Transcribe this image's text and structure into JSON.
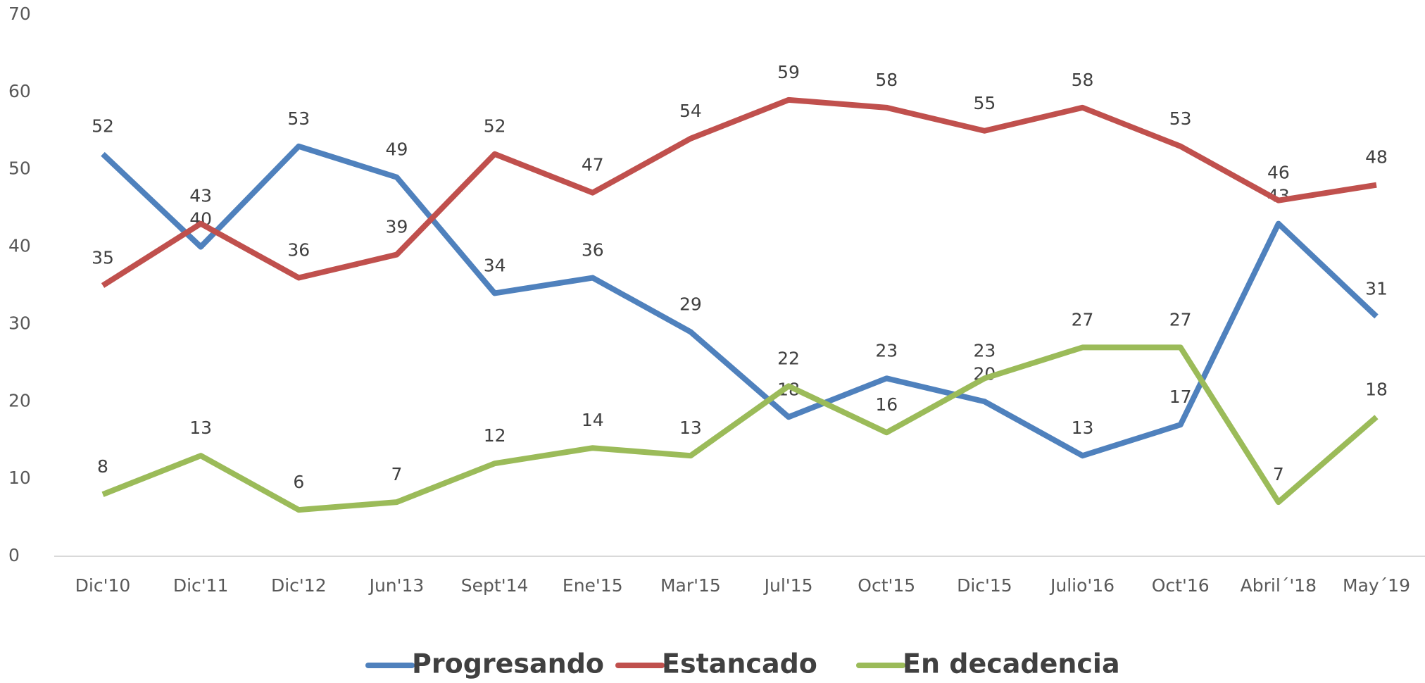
{
  "chart_data": {
    "type": "line",
    "categories": [
      "Dic'10",
      "Dic'11",
      "Dic'12",
      "Jun'13",
      "Sept'14",
      "Ene'15",
      "Mar'15",
      "Jul'15",
      "Oct'15",
      "Dic'15",
      "Julio'16",
      "Oct'16",
      "Abril´'18",
      "May´19"
    ],
    "series": [
      {
        "name": "Progresando",
        "color": "#4f81bd",
        "values": [
          52,
          40,
          53,
          49,
          34,
          36,
          29,
          18,
          23,
          20,
          13,
          17,
          43,
          31
        ]
      },
      {
        "name": "Estancado",
        "color": "#c0504d",
        "values": [
          35,
          43,
          36,
          39,
          52,
          47,
          54,
          59,
          58,
          55,
          58,
          53,
          46,
          48
        ]
      },
      {
        "name": "En decadencia",
        "color": "#9bbb59",
        "values": [
          8,
          13,
          6,
          7,
          12,
          14,
          13,
          22,
          16,
          23,
          27,
          27,
          7,
          18
        ]
      }
    ],
    "ylim": [
      0,
      70
    ],
    "yticks": [
      0,
      10,
      20,
      30,
      40,
      50,
      60,
      70
    ],
    "grid": false,
    "legend": "bottom"
  }
}
